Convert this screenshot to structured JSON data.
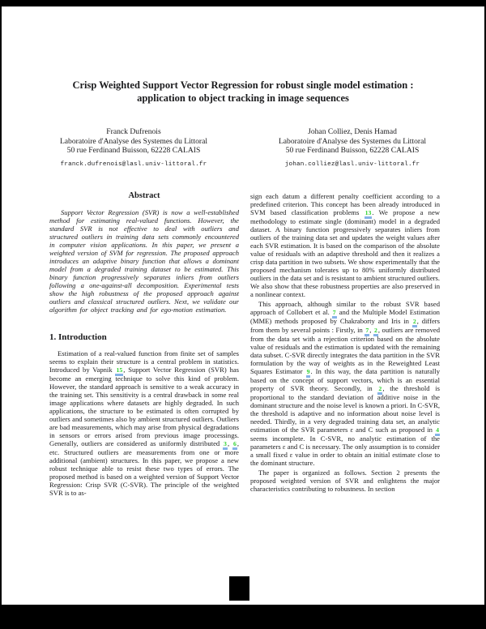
{
  "paper": {
    "title_lines": [
      "Crisp Weighted Support Vector Regression for robust single model estimation :",
      "application to object tracking in image sequences"
    ],
    "authors": [
      {
        "name": "Franck Dufrenois",
        "lab": "Laboratoire d'Analyse des Systemes du Littoral",
        "address": "50 rue Ferdinand Buisson, 62228 CALAIS",
        "email": "franck.dufrenois@lasl.univ-littoral.fr"
      },
      {
        "name": "Johan Colliez, Denis Hamad",
        "lab": "Laboratoire d'Analyse des Systemes du Littoral",
        "address": "50 rue Ferdinand Buisson, 62228 CALAIS",
        "email": "johan.colliez@lasl.univ-littoral.fr"
      }
    ],
    "abstract_heading": "Abstract",
    "abstract": [
      {
        "t": "Support Vector Regression (SVR) is now a well-established method for estimating real-valued functions. However, the standard SVR is not effective to deal with outliers and structured outliers in training data sets commonly encountered in computer vision applications. In this paper, we present a weighted version of SVM for regression. The proposed approach introduces an adaptive binary function that allows a dominant model from a degraded training dataset to be estimated. This binary function progressively separates inliers from outliers following a one-against-all decomposition. Experimental tests show the high robustness of the proposed approach against outliers and classical structured outliers. Next, we validate our algorithm for object tracking and for ego-motion estimation."
      }
    ],
    "intro_heading": "1. Introduction",
    "intro": [
      {
        "t": "Estimation of a real-valued function from finite set of samples seems to explain their structure is a central problem in statistics. Introduced by Vapnik "
      },
      {
        "c": "15"
      },
      {
        "t": ", Support Vector Regression (SVR) has become an emerging technique to solve this kind of problem. However, the standard approach is sensitive to a weak accuracy in the training set. This sensitivity is a central drawback in some real image applications where datasets are highly degraded. In such applications, the structure to be estimated is often corrupted by outliers and sometimes also by ambient structured outliers. Outliers are bad measurements, which may arise from physical degradations in sensors or errors arised from previous image processings. Generally, outliers are considered as uniformly distributed "
      },
      {
        "c": "3"
      },
      {
        "t": ", "
      },
      {
        "c": "6"
      },
      {
        "t": ", etc. Structured outliers are measurements from one or more additional (ambient) structures. In this paper, we propose a new robust technique able to resist these two types of errors. The proposed method is based on a weighted version of Support Vector Regression: Crisp SVR (C-SVR). The principle of the weighted SVR is to as-"
      }
    ],
    "right_para1": [
      {
        "t": "sign each datum a different penalty coefficient according to a predefined criterion. This concept has been already introduced in SVM based classification problems "
      },
      {
        "c": "13"
      },
      {
        "t": ". We propose a new methodology to estimate single (dominant) model in a degraded dataset. A binary function progressively separates inliers from outliers of the training data set and updates the weight values after each SVR estimation. It is based on the comparison of the absolute value of residuals with an adaptive threshold and then it realizes a crisp data partition in two subsets. We show experimentally that the proposed mechanism tolerates up to 80% uniformly distributed outliers in the data set and is resistant to ambient structured outliers. We also show that these robustness properties are also preserved in a nonlinear context."
      }
    ],
    "right_para2": [
      {
        "t": "This approach, although similar to the robust SVR based approach of Collobert et al. "
      },
      {
        "c": "7"
      },
      {
        "t": " and the Multiple Model Estimation (MME) methods proposed by Chakraborty and Iris in "
      },
      {
        "c": "2"
      },
      {
        "t": ", differs from them by several points : Firstly, in "
      },
      {
        "c": "7"
      },
      {
        "t": ", "
      },
      {
        "c": "2"
      },
      {
        "t": ", outliers are removed from the data set with a rejection criterion based on the absolute value of residuals and the estimation is updated with the remaining data subset. C-SVR directly integrates the data partition in the SVR formulation by the way of weights as in the Reweighted Least Squares Estimator "
      },
      {
        "c": "9"
      },
      {
        "t": ". In this way, the data partition is naturally based on the concept of support vectors, which is an essential property of SVR theory. Secondly, in "
      },
      {
        "c": "2"
      },
      {
        "t": ", the threshold is proportional to the standard deviation of additive noise in the dominant structure and the noise level is known a priori. In C-SVR, the threshold is adaptive and no information about noise level is needed. Thirdly, in a very degraded training data set, an analytic estimation of the SVR parameters ε and C such as proposed in "
      },
      {
        "c": "4"
      },
      {
        "t": " seems incomplete. In C-SVR, no analytic estimation of the parameters ε and C is necessary. The only assumption is to consider a small fixed ε value in order to obtain an initial estimate close to the dominant structure."
      }
    ],
    "right_para3": [
      {
        "t": "The paper is organized as follows. Section 2 presents the proposed weighted version of SVR and enlightens the major characteristics contributing to robustness. In section"
      }
    ],
    "colors": {
      "citation_green": "#2ed32e",
      "citation_underline_blue": "#85b2e8",
      "frame_black": "#000000",
      "page_white": "#ffffff"
    }
  }
}
